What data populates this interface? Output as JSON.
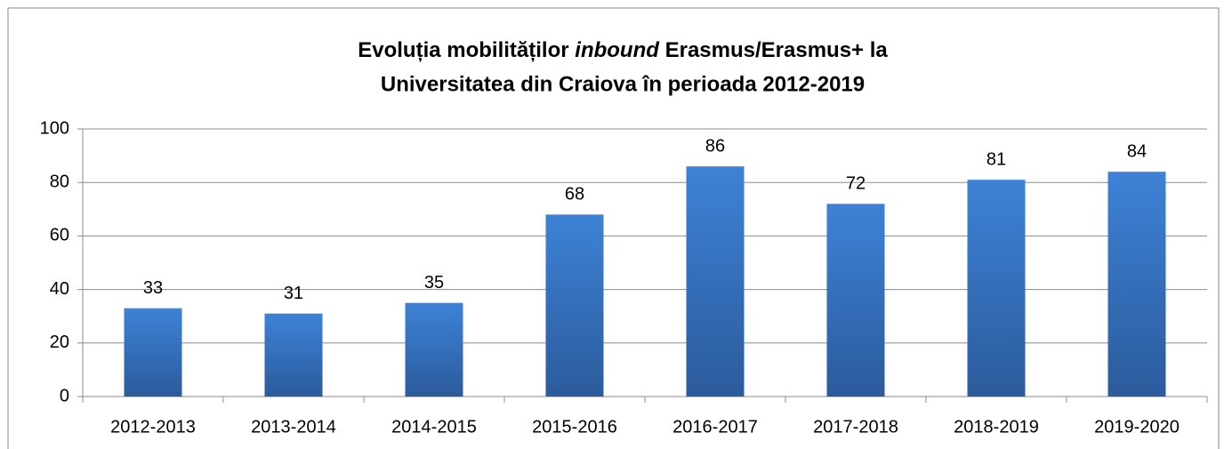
{
  "chart_data": {
    "type": "bar",
    "title": {
      "line1": [
        "Evoluția mobilităților ",
        "inbound",
        " Erasmus/Erasmus+ la"
      ],
      "line2": "Universitatea din Craiova în perioada 2012-2019"
    },
    "categories": [
      "2012-2013",
      "2013-2014",
      "2014-2015",
      "2015-2016",
      "2016-2017",
      "2017-2018",
      "2018-2019",
      "2019-2020"
    ],
    "values": [
      33,
      31,
      35,
      68,
      86,
      72,
      81,
      84
    ],
    "color": "#3a7bcc",
    "ylim": [
      0,
      100
    ],
    "yticks": [
      0,
      20,
      40,
      60,
      80,
      100
    ],
    "grid": true
  }
}
